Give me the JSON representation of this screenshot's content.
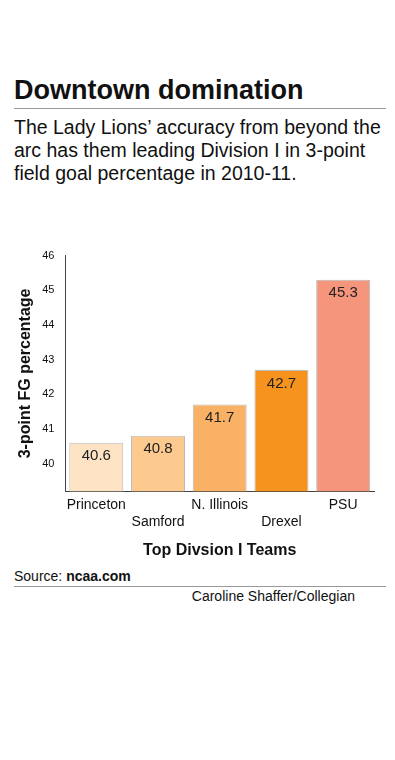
{
  "chart_data": {
    "type": "bar",
    "title": "Downtown domination",
    "subtitle": "The Lady Lions’ accuracy from beyond the arc has them leading Division I in 3-point field goal percentage in 2010-11.",
    "x_label": "Top Divsion I Teams",
    "y_label": "3-point FG percentage",
    "source": "Source: ncaa.com",
    "credit": "Caroline Shaffer/Collegian",
    "categories": [
      "Princeton",
      "Samford",
      "N. Illinois",
      "Drexel",
      "PSU"
    ],
    "values": [
      40.6,
      40.8,
      41.7,
      42.7,
      45.3
    ],
    "colors": [
      "#fde3c4",
      "#fcc98e",
      "#f9b265",
      "#f6931f",
      "#f4957c"
    ],
    "ylim": [
      39.2,
      46
    ],
    "yticks": [
      40,
      41,
      42,
      43,
      44,
      45,
      46
    ],
    "grid": false,
    "data_labels": true
  }
}
